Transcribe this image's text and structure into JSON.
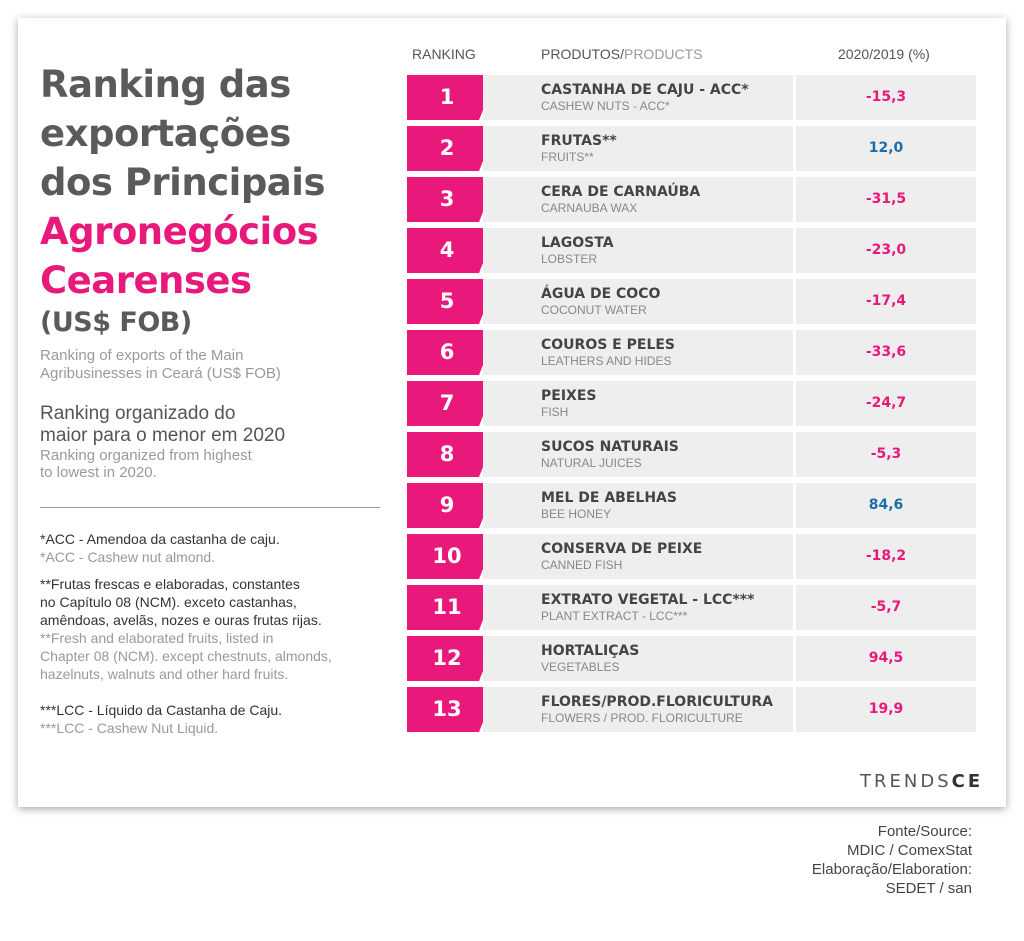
{
  "title": {
    "line1": "Ranking das",
    "line2": "exportações",
    "line3": "dos Principais",
    "line4": "Agronegócios",
    "line5": "Cearenses",
    "line6": "(US$ FOB)"
  },
  "subtitle_en": [
    "Ranking of exports of the Main",
    "Agribusinesses in Ceará (US$ FOB)"
  ],
  "ranking_pt": [
    "Ranking organizado do",
    "maior para o menor em 2020"
  ],
  "ranking_en": [
    "Ranking organized from highest",
    "to lowest in 2020."
  ],
  "notes": {
    "acc_pt": "*ACC - Amendoa da castanha de caju.",
    "acc_en": "*ACC - Cashew nut almond.",
    "fruits_pt": [
      "**Frutas frescas e elaboradas, constantes",
      "no Capítulo 08 (NCM). exceto castanhas,",
      "amêndoas, avelãs, nozes e ouras frutas rijas."
    ],
    "fruits_en": [
      "**Fresh and elaborated fruits, listed in",
      "Chapter 08 (NCM). except chestnuts, almonds,",
      "hazelnuts, walnuts and other hard fruits."
    ],
    "lcc_pt": "***LCC - Líquido da Castanha de Caju.",
    "lcc_en": "***LCC - Cashew Nut Liquid."
  },
  "headers": {
    "ranking": "RANKING",
    "products_pt": "PRODUTOS/",
    "products_en": "PRODUCTS",
    "change": "2020/2019 (%)"
  },
  "rows": [
    {
      "rank": "1",
      "pt": "CASTANHA DE CAJU - ACC*",
      "en": "CASHEW NUTS - ACC*",
      "value": "-15,3"
    },
    {
      "rank": "2",
      "pt": "FRUTAS**",
      "en": "FRUITS**",
      "value": "12,0"
    },
    {
      "rank": "3",
      "pt": "CERA DE CARNAÚBA",
      "en": "CARNAUBA WAX",
      "value": "-31,5"
    },
    {
      "rank": "4",
      "pt": "LAGOSTA",
      "en": "LOBSTER",
      "value": "-23,0"
    },
    {
      "rank": "5",
      "pt": "ÁGUA DE COCO",
      "en": "COCONUT WATER",
      "value": "-17,4"
    },
    {
      "rank": "6",
      "pt": "COUROS E PELES",
      "en": "LEATHERS AND HIDES",
      "value": "-33,6"
    },
    {
      "rank": "7",
      "pt": "PEIXES",
      "en": "FISH",
      "value": "-24,7"
    },
    {
      "rank": "8",
      "pt": "SUCOS NATURAIS",
      "en": "NATURAL JUICES",
      "value": "-5,3"
    },
    {
      "rank": "9",
      "pt": "MEL DE ABELHAS",
      "en": "BEE HONEY",
      "value": "84,6"
    },
    {
      "rank": "10",
      "pt": "CONSERVA DE PEIXE",
      "en": "CANNED FISH",
      "value": "-18,2"
    },
    {
      "rank": "11",
      "pt": "EXTRATO VEGETAL - LCC***",
      "en": "PLANT EXTRACT - LCC***",
      "value": "-5,7"
    },
    {
      "rank": "12",
      "pt": "HORTALIÇAS",
      "en": "VEGETABLES",
      "value": "94,5"
    },
    {
      "rank": "13",
      "pt": "FLORES/PROD.FLORICULTURA",
      "en": "FLOWERS / PROD. FLORICULTURE",
      "value": "19,9"
    }
  ],
  "colors": {
    "accent": "#e8197b",
    "blue": "#1b6ea8",
    "negative": "#e8197b"
  },
  "logo": {
    "thin": "TRENDS",
    "bold": "CE"
  },
  "source": [
    "Fonte/Source:",
    "MDIC / ComexStat",
    "Elaboração/Elaboration:",
    "SEDET / san"
  ]
}
